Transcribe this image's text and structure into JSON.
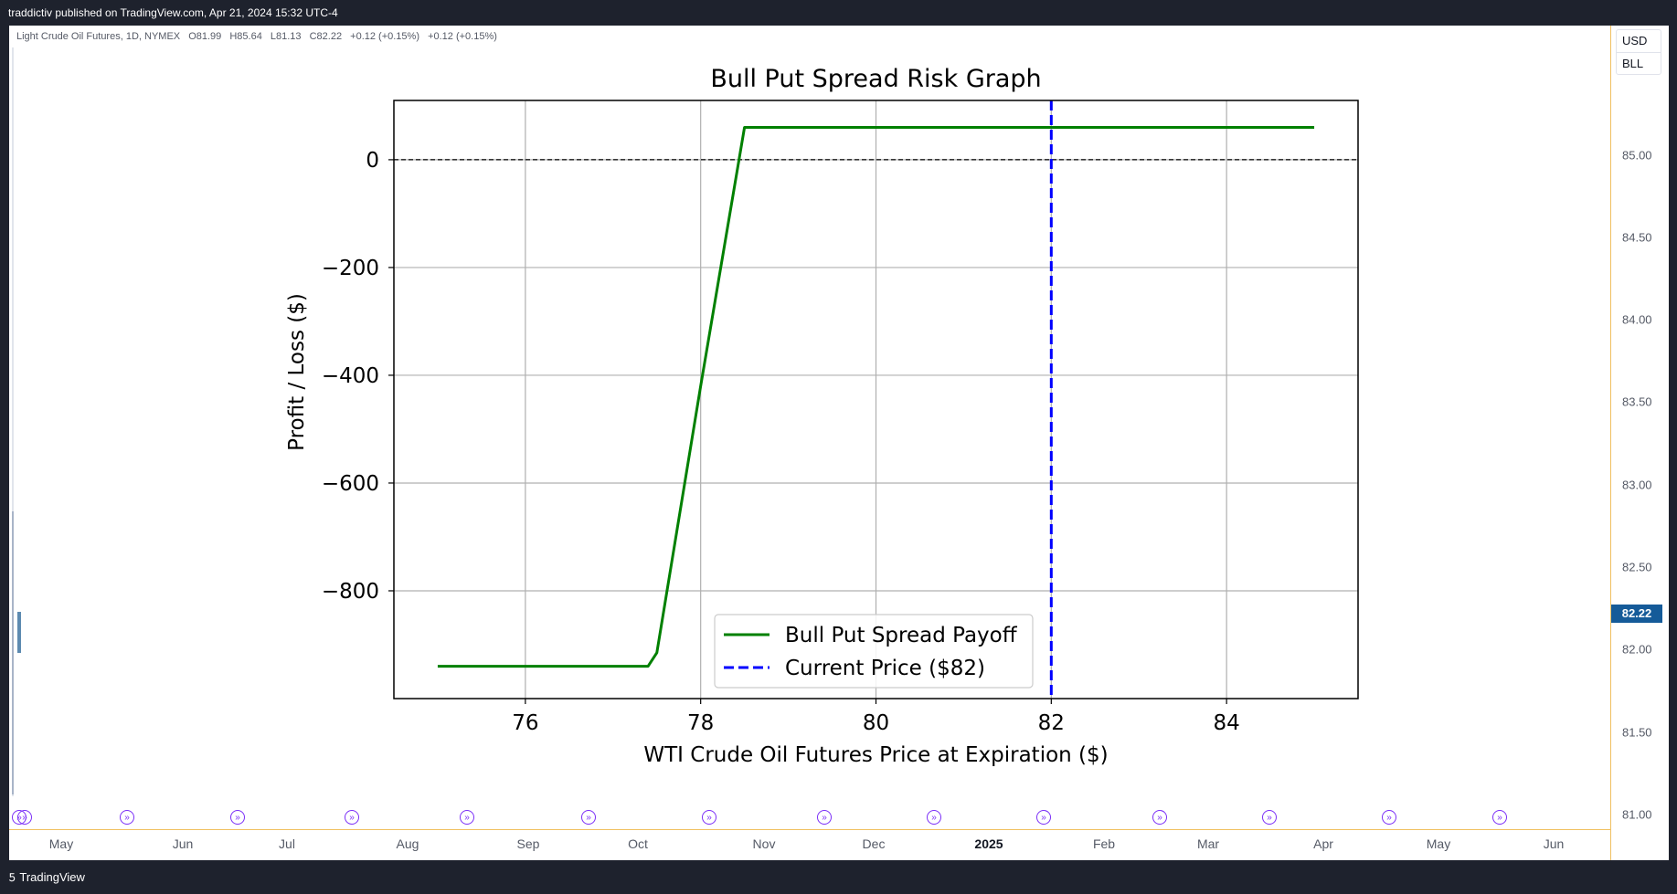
{
  "header": {
    "publish_line": "traddictiv published on TradingView.com, Apr 21, 2024 15:32 UTC-4"
  },
  "legend": {
    "symbol": "Light Crude Oil Futures, 1D, NYMEX",
    "open": "O81.99",
    "high": "H85.64",
    "low": "L81.13",
    "close": "C82.22",
    "change1": "+0.12 (+0.15%)",
    "change2": "+0.12 (+0.15%)"
  },
  "price_scale": {
    "currency": "USD",
    "unit": "BLL",
    "ticks": [
      "85.00",
      "84.50",
      "84.00",
      "83.50",
      "83.00",
      "82.50",
      "82.00",
      "81.50",
      "81.00"
    ],
    "current_price": "82.22",
    "current_price_color": "#155b99"
  },
  "time_axis": {
    "months": [
      "May",
      "Jun",
      "Jul",
      "Aug",
      "Sep",
      "Oct",
      "Nov",
      "Dec",
      "2025",
      "Feb",
      "Mar",
      "Apr",
      "May",
      "Jun"
    ]
  },
  "footer": {
    "brand": "TradingView",
    "logo_icon": "tradingview-logo-icon"
  },
  "colors": {
    "background": "#ffffff",
    "frame": "#1e222d",
    "scale_border": "#f0c060",
    "event_icon": "#7b2ff7"
  },
  "chart_data": {
    "type": "line",
    "title": "Bull Put Spread Risk Graph",
    "xlabel": "WTI Crude Oil Futures Price at Expiration ($)",
    "ylabel": "Profit / Loss ($)",
    "xlim": [
      74.5,
      85.5
    ],
    "ylim": [
      -1000,
      110
    ],
    "xticks": [
      76,
      78,
      80,
      82,
      84
    ],
    "yticks": [
      0,
      -200,
      -400,
      -600,
      -800
    ],
    "ytick_labels": [
      "0",
      "−200",
      "−400",
      "−600",
      "−800"
    ],
    "grid": true,
    "legend_position": "lower-center",
    "zero_line": true,
    "series": [
      {
        "name": "Bull Put Spread Payoff",
        "color": "#008000",
        "style": "solid",
        "x": [
          75.0,
          77.4,
          77.5,
          78.0,
          78.5,
          85.0
        ],
        "y": [
          -940,
          -940,
          -915,
          -420,
          60,
          60
        ]
      },
      {
        "name": "Current Price ($82)",
        "color": "#0000ff",
        "style": "dashed",
        "vline": 82
      }
    ]
  }
}
